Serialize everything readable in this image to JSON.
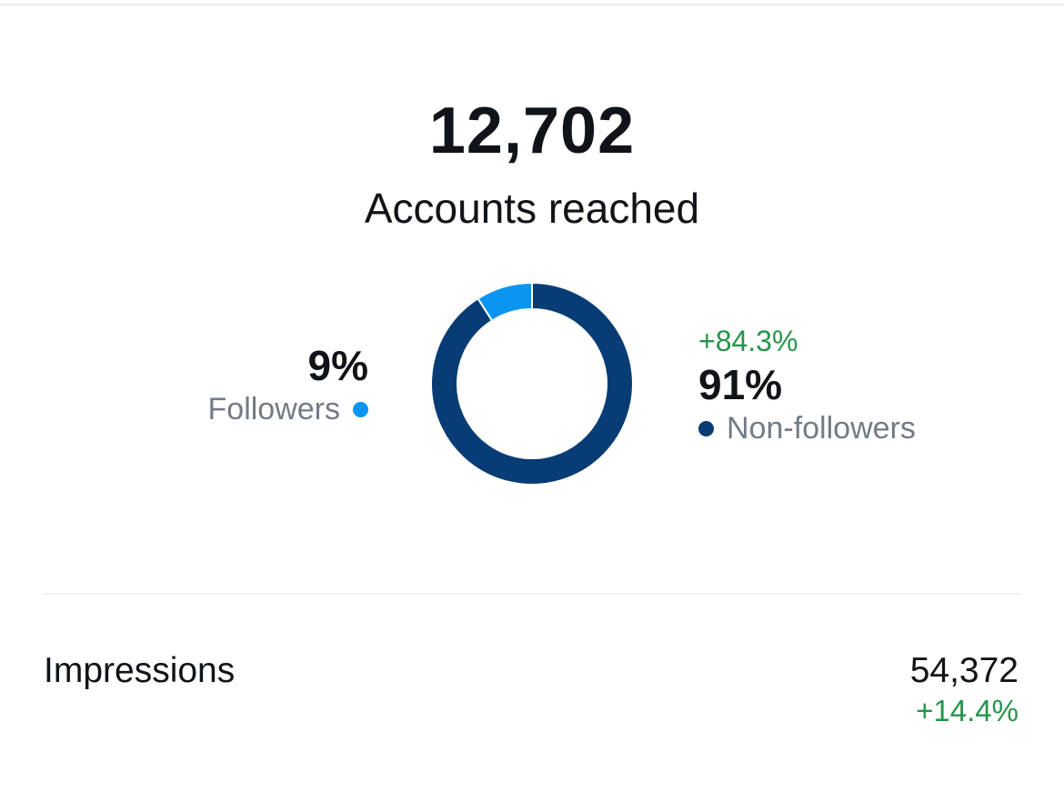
{
  "reach": {
    "total": "12,702",
    "label": "Accounts reached"
  },
  "colors": {
    "followers": "#0a95f1",
    "non_followers": "#083c74",
    "positive_change": "#25954b"
  },
  "legend": {
    "followers": {
      "percent": "9%",
      "label": "Followers"
    },
    "non_followers": {
      "change": "+84.3%",
      "percent": "91%",
      "label": "Non-followers"
    }
  },
  "chart_data": {
    "type": "pie",
    "title": "",
    "categories": [
      "Followers",
      "Non-followers"
    ],
    "values": [
      9,
      91
    ],
    "colors": [
      "#0a95f1",
      "#083c74"
    ],
    "hole": "donut"
  },
  "metrics": {
    "impressions": {
      "label": "Impressions",
      "value": "54,372",
      "change": "+14.4%"
    }
  }
}
